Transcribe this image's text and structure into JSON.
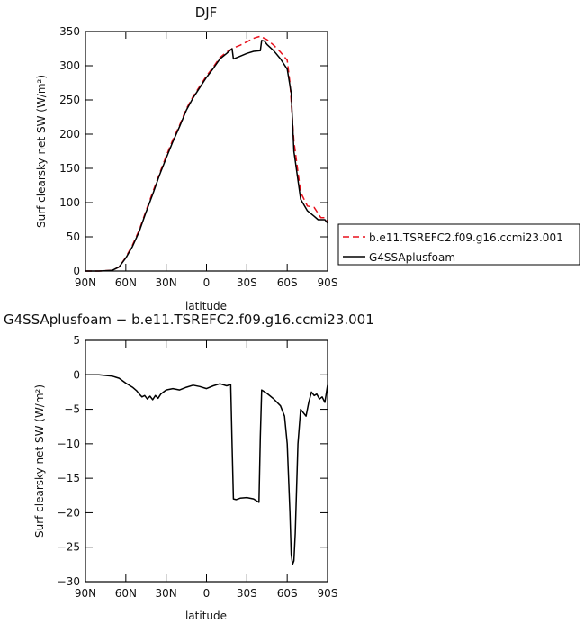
{
  "chart_data": [
    {
      "type": "line",
      "title": "DJF",
      "xlabel": "latitude",
      "ylabel": "Surf clearsky net SW (W/m²)",
      "xlim": [
        90,
        -90
      ],
      "ylim": [
        0,
        350
      ],
      "xticks": [
        90,
        60,
        30,
        0,
        -30,
        -60,
        -90
      ],
      "xticklabels": [
        "90N",
        "60N",
        "30N",
        "0",
        "30S",
        "60S",
        "90S"
      ],
      "yticks": [
        0,
        50,
        100,
        150,
        200,
        250,
        300,
        350
      ],
      "yticklabels": [
        "0",
        "50",
        "100",
        "150",
        "200",
        "250",
        "300",
        "350"
      ],
      "legend_position": "bottom-right",
      "series": [
        {
          "name": "b.e11.TSREFC2.f09.g16.ccmi23.001",
          "color": "#e8101c",
          "dash": "dashed",
          "x": [
            90,
            80,
            70,
            65,
            60,
            55,
            50,
            45,
            40,
            35,
            30,
            25,
            20,
            15,
            10,
            5,
            0,
            -5,
            -10,
            -15,
            -20,
            -25,
            -30,
            -35,
            -38,
            -40,
            -45,
            -50,
            -55,
            -60,
            -62,
            -65,
            -70,
            -75,
            -80,
            -85,
            -88,
            -90
          ],
          "y": [
            0,
            0,
            1,
            6,
            20,
            38,
            60,
            88,
            115,
            142,
            168,
            192,
            213,
            237,
            255,
            270,
            285,
            298,
            312,
            320,
            326,
            330,
            335,
            340,
            342,
            343,
            338,
            330,
            320,
            308,
            275,
            190,
            115,
            95,
            93,
            78,
            78,
            73
          ]
        },
        {
          "name": "G4SSAplusfoam",
          "color": "#000000",
          "dash": "solid",
          "x": [
            90,
            80,
            70,
            65,
            60,
            55,
            50,
            45,
            40,
            35,
            30,
            25,
            20,
            15,
            10,
            5,
            0,
            -5,
            -10,
            -15,
            -19,
            -20,
            -25,
            -30,
            -35,
            -40,
            -41,
            -43,
            -45,
            -50,
            -55,
            -60,
            -63,
            -65,
            -70,
            -75,
            -80,
            -83,
            -85,
            -88,
            -90
          ],
          "y": [
            0,
            0,
            1,
            6,
            19,
            36,
            58,
            86,
            112,
            140,
            165,
            189,
            211,
            235,
            253,
            268,
            283,
            296,
            310,
            318,
            325,
            310,
            314,
            318,
            321,
            322,
            337,
            336,
            331,
            322,
            310,
            295,
            260,
            175,
            105,
            88,
            80,
            75,
            75,
            75,
            70
          ]
        }
      ]
    },
    {
      "type": "line",
      "title": "G4SSAplusfoam − b.e11.TSREFC2.f09.g16.ccmi23.001",
      "xlabel": "latitude",
      "ylabel": "Surf clearsky net SW (W/m²)",
      "xlim": [
        90,
        -90
      ],
      "ylim": [
        -30,
        5
      ],
      "xticks": [
        90,
        60,
        30,
        0,
        -30,
        -60,
        -90
      ],
      "xticklabels": [
        "90N",
        "60N",
        "30N",
        "0",
        "30S",
        "60S",
        "90S"
      ],
      "yticks": [
        5,
        0,
        -5,
        -10,
        -15,
        -20,
        -25,
        -30
      ],
      "yticklabels": [
        "5",
        "0",
        "−5",
        "−10",
        "−15",
        "−20",
        "−25",
        "−30"
      ],
      "series": [
        {
          "color": "#000000",
          "dash": "solid",
          "x": [
            90,
            80,
            70,
            65,
            60,
            55,
            52,
            50,
            48,
            46,
            44,
            42,
            40,
            38,
            36,
            34,
            32,
            30,
            25,
            20,
            15,
            10,
            5,
            0,
            -5,
            -10,
            -15,
            -18,
            -19,
            -20,
            -22,
            -25,
            -30,
            -35,
            -39,
            -40,
            -41,
            -45,
            -50,
            -55,
            -58,
            -60,
            -62,
            -63,
            -64,
            -65,
            -66,
            -68,
            -70,
            -72,
            -74,
            -76,
            -78,
            -80,
            -82,
            -84,
            -86,
            -88,
            -90
          ],
          "y": [
            0,
            0,
            -0.2,
            -0.5,
            -1.2,
            -1.8,
            -2.3,
            -2.8,
            -3.2,
            -3.0,
            -3.5,
            -3.1,
            -3.6,
            -3.0,
            -3.4,
            -2.8,
            -2.5,
            -2.2,
            -2.0,
            -2.2,
            -1.8,
            -1.5,
            -1.7,
            -2.0,
            -1.6,
            -1.3,
            -1.6,
            -1.4,
            -10,
            -18,
            -18.1,
            -17.9,
            -17.8,
            -18.0,
            -18.5,
            -9,
            -2.2,
            -2.7,
            -3.5,
            -4.5,
            -6,
            -10,
            -20,
            -26,
            -27.5,
            -27,
            -23,
            -10,
            -5,
            -5.5,
            -6,
            -4,
            -2.5,
            -3,
            -2.8,
            -3.5,
            -3.2,
            -4,
            -1.5
          ]
        }
      ]
    }
  ]
}
